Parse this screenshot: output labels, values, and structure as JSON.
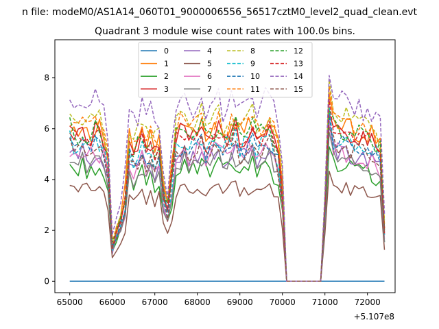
{
  "figure": {
    "suptitle": "n file: modeM0/AS1A14_060T01_9000006556_56517cztM0_level2_quad_clean.evt"
  },
  "chart_data": {
    "type": "line",
    "title": "Quadrant 3 module wise count rates with 100.0s bins.",
    "xlabel": "",
    "ylabel": "",
    "x_offset_label": "+5.107e8",
    "xlim": [
      64650,
      72650
    ],
    "ylim": [
      -0.45,
      9.5
    ],
    "xticks": [
      65000,
      66000,
      67000,
      68000,
      69000,
      70000,
      71000,
      72000
    ],
    "yticks": [
      0,
      2,
      4,
      6,
      8
    ],
    "grid": false,
    "legend_position": "upper center",
    "legend_columns": 4,
    "x_start": 65000,
    "x_step": 100,
    "point_count": 75,
    "gaps": {
      "drop_start_index": 49,
      "gap_start_index": 51,
      "gap_end_index": 59,
      "rise_index": 61,
      "end_index": 74
    },
    "series": [
      {
        "name": "0",
        "color": "#1f77b4",
        "dash": "solid",
        "base": 0,
        "constant": true
      },
      {
        "name": "1",
        "color": "#ff7f0e",
        "dash": "solid",
        "base": 6.2,
        "amp": 0.45
      },
      {
        "name": "2",
        "color": "#2ca02c",
        "dash": "solid",
        "base": 4.55,
        "amp": 0.4
      },
      {
        "name": "3",
        "color": "#d62728",
        "dash": "solid",
        "base": 5.95,
        "amp": 0.45
      },
      {
        "name": "4",
        "color": "#9467bd",
        "dash": "solid",
        "base": 5.1,
        "amp": 0.4
      },
      {
        "name": "5",
        "color": "#8c564b",
        "dash": "solid",
        "base": 3.7,
        "amp": 0.28
      },
      {
        "name": "6",
        "color": "#e377c2",
        "dash": "solid",
        "base": 5.2,
        "amp": 0.45
      },
      {
        "name": "7",
        "color": "#7f7f7f",
        "dash": "solid",
        "base": 4.8,
        "amp": 0.4
      },
      {
        "name": "8",
        "color": "#bcbd22",
        "dash": "dashed",
        "base": 6.55,
        "amp": 0.45
      },
      {
        "name": "9",
        "color": "#17becf",
        "dash": "dashed",
        "base": 5.55,
        "amp": 0.4
      },
      {
        "name": "10",
        "color": "#1f77b4",
        "dash": "dashed",
        "base": 5.4,
        "amp": 0.4
      },
      {
        "name": "11",
        "color": "#ff7f0e",
        "dash": "dashed",
        "base": 6.35,
        "amp": 0.4
      },
      {
        "name": "12",
        "color": "#2ca02c",
        "dash": "dashed",
        "base": 6.0,
        "amp": 0.45
      },
      {
        "name": "13",
        "color": "#d62728",
        "dash": "dashed",
        "base": 5.85,
        "amp": 0.4
      },
      {
        "name": "14",
        "color": "#9467bd",
        "dash": "dashed",
        "base": 7.2,
        "amp": 0.55
      },
      {
        "name": "15",
        "color": "#8c564b",
        "dash": "dashed",
        "base": 5.3,
        "amp": 0.4
      }
    ]
  }
}
